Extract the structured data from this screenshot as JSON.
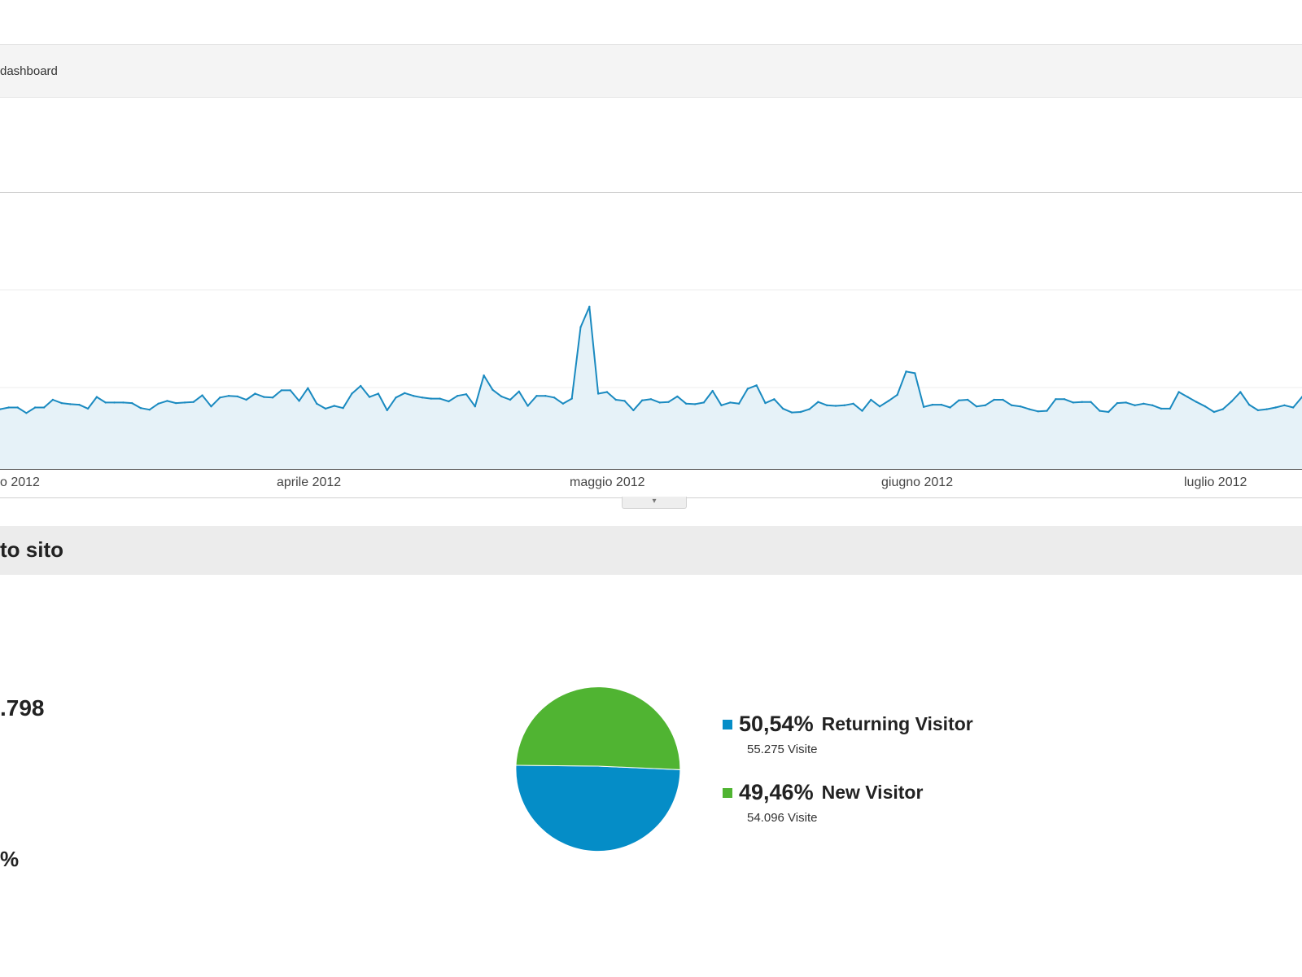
{
  "toolbar": {
    "breadcrumb": "dashboard"
  },
  "trend_chart": {
    "month_labels": [
      "o 2012",
      "aprile 2012",
      "maggio 2012",
      "giugno 2012",
      "luglio 2012"
    ],
    "colors": {
      "line": "#1a8ac0",
      "fill": "#e6f2f8",
      "grid": "#ececec"
    }
  },
  "section": {
    "title": "to sito"
  },
  "stats": {
    "visits": ".798",
    "row2": "",
    "row3": "%"
  },
  "chart_data": [
    {
      "type": "line",
      "series": [
        {
          "values": [
            108,
            111,
            111,
            101,
            111,
            111,
            125,
            119,
            117,
            116,
            109,
            130,
            120,
            120,
            120,
            119,
            110,
            107,
            118,
            123,
            119,
            120,
            121,
            133,
            113,
            129,
            132,
            131,
            125,
            136,
            130,
            129,
            142,
            142,
            123,
            146,
            118,
            109,
            114,
            110,
            136,
            150,
            130,
            136,
            106,
            129,
            137,
            132,
            129,
            127,
            127,
            122,
            132,
            135,
            113,
            169,
            143,
            131,
            125,
            140,
            114,
            132,
            132,
            129,
            118,
            127,
            256,
            293,
            136,
            139,
            125,
            123,
            106,
            124,
            126,
            120,
            121,
            131,
            118,
            117,
            120,
            141,
            115,
            120,
            118,
            145,
            151,
            119,
            126,
            109,
            102,
            103,
            108,
            121,
            115,
            114,
            115,
            118,
            105,
            125,
            113,
            123,
            134,
            176,
            173,
            112,
            116,
            116,
            111,
            124,
            125,
            113,
            115,
            125,
            125,
            115,
            113,
            108,
            104,
            105,
            126,
            126,
            120,
            121,
            121,
            105,
            103,
            119,
            120,
            115,
            118,
            115,
            109,
            109,
            139,
            130,
            121,
            113,
            103,
            108,
            122,
            139,
            116,
            106,
            108,
            111,
            115,
            111,
            130
          ]
        }
      ]
    },
    {
      "type": "pie",
      "slices": [
        {
          "label": "Returning Visitor",
          "percent": "50,54%",
          "value": 55275,
          "visits_label": "55.275 Visite",
          "color": "#058dc7"
        },
        {
          "label": "New Visitor",
          "percent": "49,46%",
          "value": 54096,
          "visits_label": "54.096 Visite",
          "color": "#50b432"
        }
      ]
    }
  ]
}
